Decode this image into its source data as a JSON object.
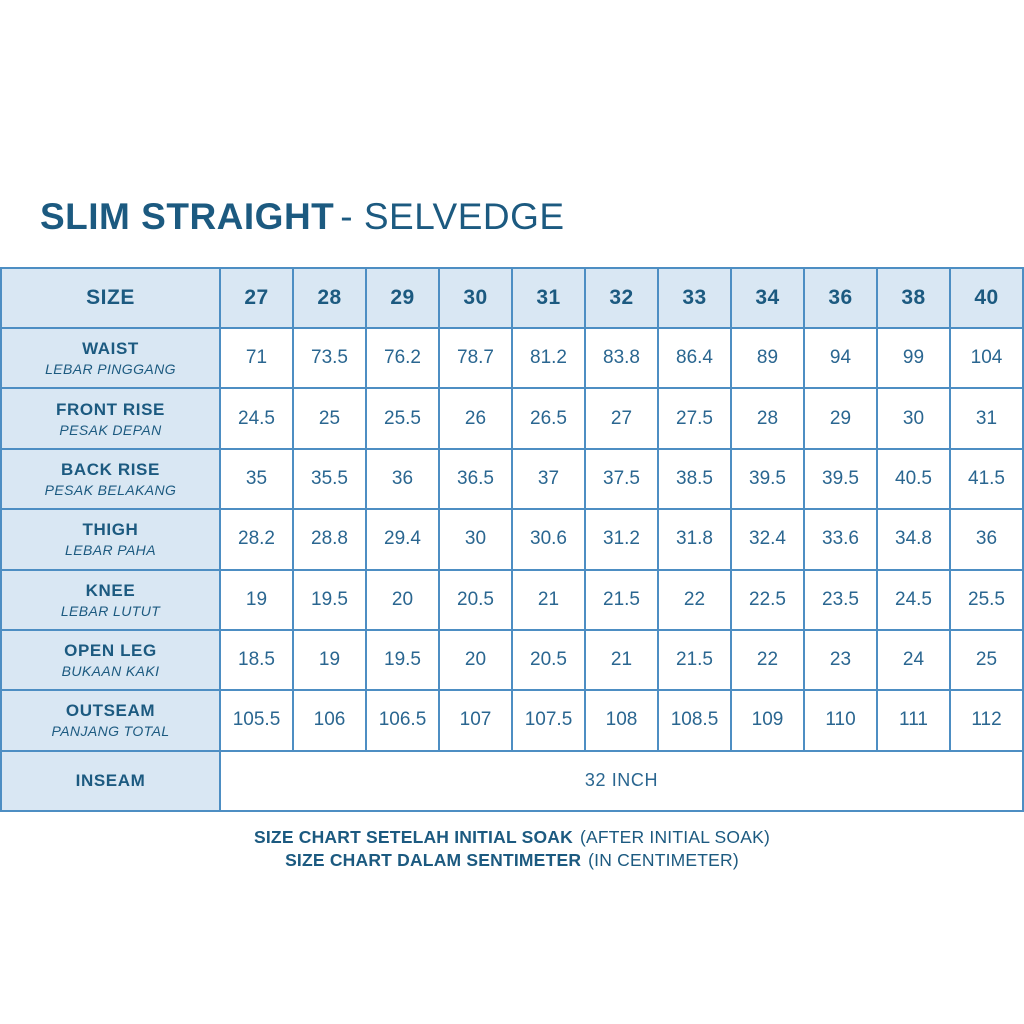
{
  "title": {
    "bold": "SLIM STRAIGHT",
    "regular": "- SELVEDGE"
  },
  "colors": {
    "ink": "#1c5a80",
    "number_text": "#2a6690",
    "border": "#4d8ec3",
    "cell_bg": "#d9e7f3"
  },
  "table": {
    "header": [
      "SIZE",
      "27",
      "28",
      "29",
      "30",
      "31",
      "32",
      "33",
      "34",
      "36",
      "38",
      "40"
    ],
    "rows": [
      {
        "label": "WAIST",
        "sublabel": "LEBAR PINGGANG",
        "values": [
          "71",
          "73.5",
          "76.2",
          "78.7",
          "81.2",
          "83.8",
          "86.4",
          "89",
          "94",
          "99",
          "104"
        ]
      },
      {
        "label": "FRONT RISE",
        "sublabel": "PESAK DEPAN",
        "values": [
          "24.5",
          "25",
          "25.5",
          "26",
          "26.5",
          "27",
          "27.5",
          "28",
          "29",
          "30",
          "31"
        ]
      },
      {
        "label": "BACK RISE",
        "sublabel": "PESAK BELAKANG",
        "values": [
          "35",
          "35.5",
          "36",
          "36.5",
          "37",
          "37.5",
          "38.5",
          "39.5",
          "39.5",
          "40.5",
          "41.5"
        ]
      },
      {
        "label": "THIGH",
        "sublabel": "LEBAR PAHA",
        "values": [
          "28.2",
          "28.8",
          "29.4",
          "30",
          "30.6",
          "31.2",
          "31.8",
          "32.4",
          "33.6",
          "34.8",
          "36"
        ]
      },
      {
        "label": "KNEE",
        "sublabel": "LEBAR LUTUT",
        "values": [
          "19",
          "19.5",
          "20",
          "20.5",
          "21",
          "21.5",
          "22",
          "22.5",
          "23.5",
          "24.5",
          "25.5"
        ]
      },
      {
        "label": "OPEN LEG",
        "sublabel": "BUKAAN KAKI",
        "values": [
          "18.5",
          "19",
          "19.5",
          "20",
          "20.5",
          "21",
          "21.5",
          "22",
          "23",
          "24",
          "25"
        ]
      },
      {
        "label": "OUTSEAM",
        "sublabel": "PANJANG TOTAL",
        "values": [
          "105.5",
          "106",
          "106.5",
          "107",
          "107.5",
          "108",
          "108.5",
          "109",
          "110",
          "111",
          "112"
        ]
      }
    ],
    "inseam": {
      "label": "INSEAM",
      "value": "32 INCH"
    }
  },
  "footer": {
    "line1_bold": "SIZE CHART SETELAH INITIAL SOAK",
    "line1_regular": "(AFTER INITIAL SOAK)",
    "line2_bold": "SIZE CHART DALAM SENTIMETER",
    "line2_regular": "(IN CENTIMETER)"
  }
}
